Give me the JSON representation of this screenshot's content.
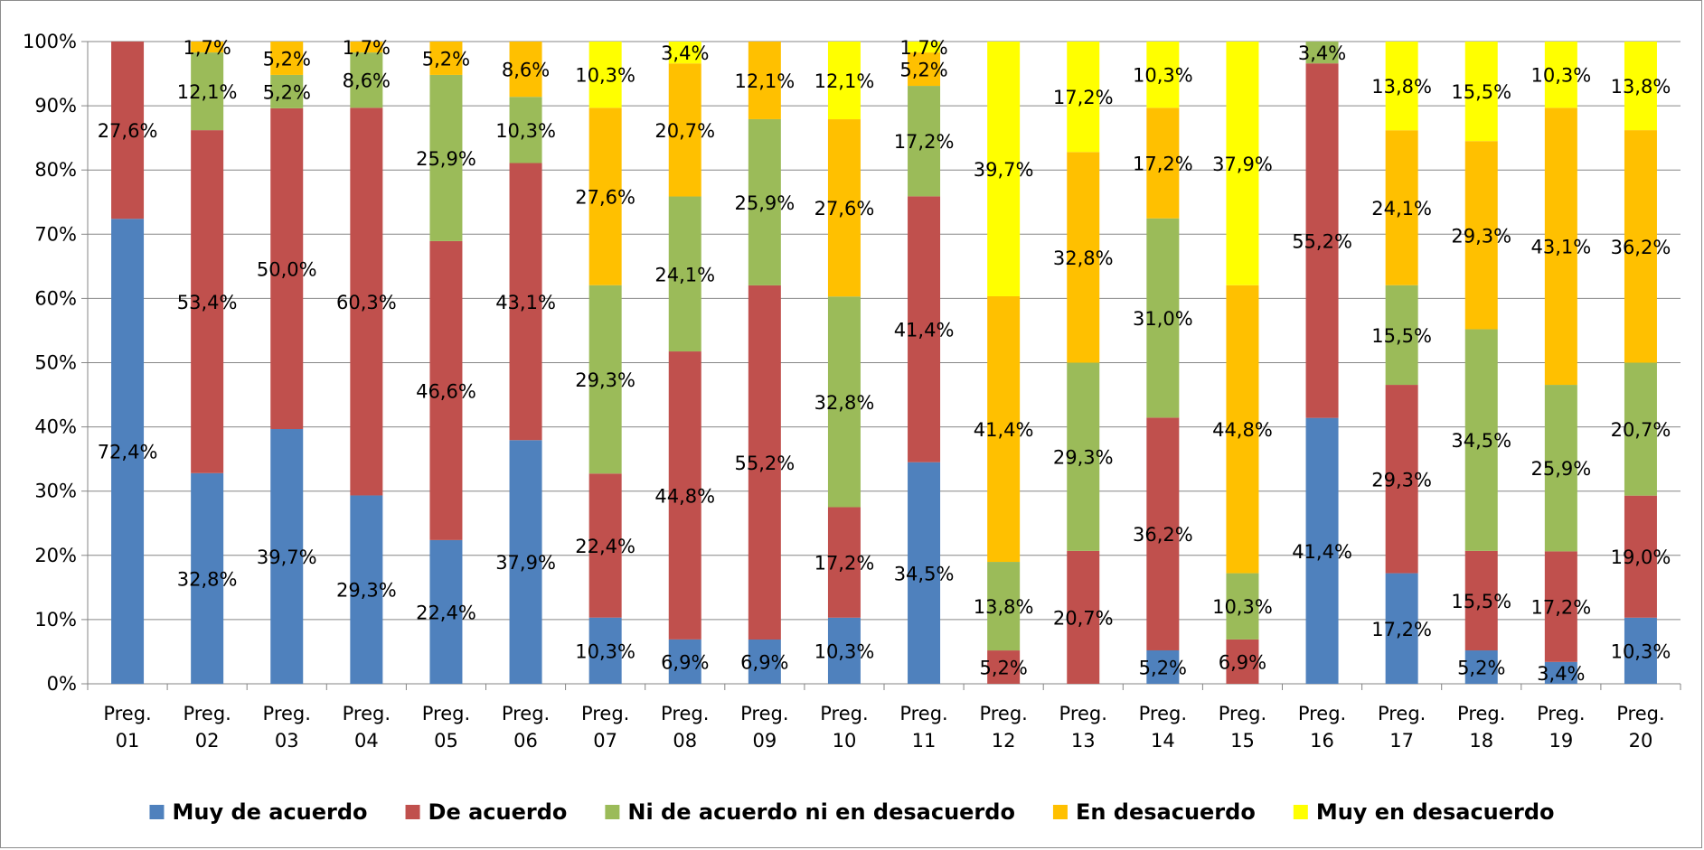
{
  "chart_data": {
    "type": "bar",
    "stacked": "percent",
    "categories": [
      "Preg. 01",
      "Preg. 02",
      "Preg. 03",
      "Preg. 04",
      "Preg. 05",
      "Preg. 06",
      "Preg. 07",
      "Preg. 08",
      "Preg. 09",
      "Preg. 10",
      "Preg. 11",
      "Preg. 12",
      "Preg. 13",
      "Preg. 14",
      "Preg. 15",
      "Preg. 16",
      "Preg. 17",
      "Preg. 18",
      "Preg. 19",
      "Preg. 20"
    ],
    "category_lines": [
      [
        "Preg.",
        "01"
      ],
      [
        "Preg.",
        "02"
      ],
      [
        "Preg.",
        "03"
      ],
      [
        "Preg.",
        "04"
      ],
      [
        "Preg.",
        "05"
      ],
      [
        "Preg.",
        "06"
      ],
      [
        "Preg.",
        "07"
      ],
      [
        "Preg.",
        "08"
      ],
      [
        "Preg.",
        "09"
      ],
      [
        "Preg.",
        "10"
      ],
      [
        "Preg.",
        "11"
      ],
      [
        "Preg.",
        "12"
      ],
      [
        "Preg.",
        "13"
      ],
      [
        "Preg.",
        "14"
      ],
      [
        "Preg.",
        "15"
      ],
      [
        "Preg.",
        "16"
      ],
      [
        "Preg.",
        "17"
      ],
      [
        "Preg.",
        "18"
      ],
      [
        "Preg.",
        "19"
      ],
      [
        "Preg.",
        "20"
      ]
    ],
    "series": [
      {
        "name": "Muy de acuerdo",
        "color": "#4f81bd",
        "values": [
          72.4,
          32.8,
          39.7,
          29.3,
          22.4,
          37.9,
          10.3,
          6.9,
          6.9,
          10.3,
          34.5,
          0,
          0,
          5.2,
          0,
          41.4,
          17.2,
          5.2,
          3.4,
          10.3
        ],
        "labels": [
          "72,4%",
          "32,8%",
          "39,7%",
          "29,3%",
          "22,4%",
          "37,9%",
          "10,3%",
          "6,9%",
          "6,9%",
          "10,3%",
          "34,5%",
          "",
          "",
          "5,2%",
          "",
          "41,4%",
          "17,2%",
          "5,2%",
          "3,4%",
          "10,3%"
        ]
      },
      {
        "name": "De acuerdo",
        "color": "#c0504d",
        "values": [
          27.6,
          53.4,
          50.0,
          60.3,
          46.6,
          43.1,
          22.4,
          44.8,
          55.2,
          17.2,
          41.4,
          5.2,
          20.7,
          36.2,
          6.9,
          55.2,
          29.3,
          15.5,
          17.2,
          19.0
        ],
        "labels": [
          "27,6%",
          "53,4%",
          "50,0%",
          "60,3%",
          "46,6%",
          "43,1%",
          "22,4%",
          "44,8%",
          "55,2%",
          "17,2%",
          "41,4%",
          "5,2%",
          "20,7%",
          "36,2%",
          "6,9%",
          "55,2%",
          "29,3%",
          "15,5%",
          "17,2%",
          "19,0%"
        ]
      },
      {
        "name": "Ni de acuerdo ni en desacuerdo",
        "color": "#9bbb59",
        "values": [
          0,
          12.1,
          5.2,
          8.6,
          25.9,
          10.3,
          29.3,
          24.1,
          25.9,
          32.8,
          17.2,
          13.8,
          29.3,
          31.0,
          10.3,
          3.4,
          15.5,
          34.5,
          25.9,
          20.7
        ],
        "labels": [
          "",
          "12,1%",
          "5,2%",
          "8,6%",
          "25,9%",
          "10,3%",
          "29,3%",
          "24,1%",
          "25,9%",
          "32,8%",
          "17,2%",
          "13,8%",
          "29,3%",
          "31,0%",
          "10,3%",
          "3,4%",
          "15,5%",
          "34,5%",
          "25,9%",
          "20,7%"
        ]
      },
      {
        "name": "En desacuerdo",
        "color": "#ffc000",
        "values": [
          0,
          1.7,
          5.2,
          1.7,
          5.2,
          8.6,
          27.6,
          20.7,
          12.1,
          27.6,
          5.2,
          41.4,
          32.8,
          17.2,
          44.8,
          0,
          24.1,
          29.3,
          43.1,
          36.2
        ],
        "labels": [
          "",
          "1,7%",
          "5,2%",
          "1,7%",
          "5,2%",
          "8,6%",
          "27,6%",
          "20,7%",
          "12,1%",
          "27,6%",
          "5,2%",
          "41,4%",
          "32,8%",
          "17,2%",
          "44,8%",
          "",
          "24,1%",
          "29,3%",
          "43,1%",
          "36,2%"
        ]
      },
      {
        "name": "Muy en desacuerdo",
        "color": "#ffff00",
        "values": [
          0,
          0,
          0,
          0,
          0,
          0,
          10.3,
          3.4,
          0,
          12.1,
          1.7,
          39.7,
          17.2,
          10.3,
          37.9,
          0,
          13.8,
          15.5,
          10.3,
          13.8
        ],
        "labels": [
          "",
          "",
          "",
          "",
          "",
          "",
          "10,3%",
          "3,4%",
          "",
          "12,1%",
          "1,7%",
          "39,7%",
          "17,2%",
          "10,3%",
          "37,9%",
          "",
          "13,8%",
          "15,5%",
          "10,3%",
          "13,8%"
        ]
      }
    ],
    "y_ticks": [
      "0%",
      "10%",
      "20%",
      "30%",
      "40%",
      "50%",
      "60%",
      "70%",
      "80%",
      "90%",
      "100%"
    ],
    "ylim": [
      0,
      100
    ],
    "title": "",
    "xlabel": "",
    "ylabel": "",
    "grid": true,
    "legend_position": "bottom"
  }
}
